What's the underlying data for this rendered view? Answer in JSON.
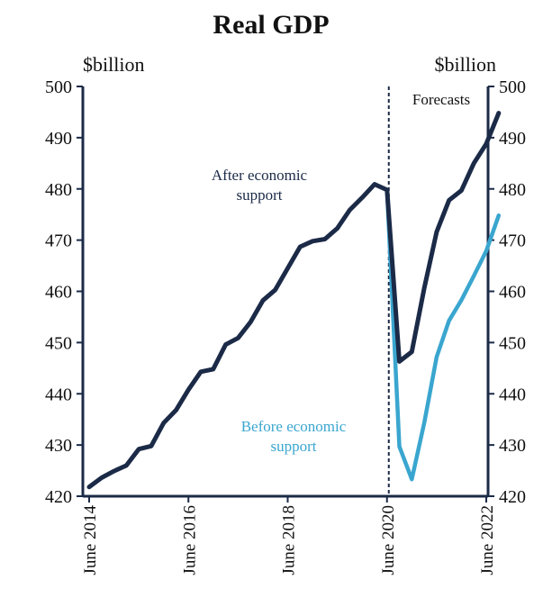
{
  "chart_data": {
    "type": "line",
    "title": "Real GDP",
    "ylabel_left": "$billion",
    "ylabel_right": "$billion",
    "ylim": [
      420,
      500
    ],
    "yticks": [
      420,
      430,
      440,
      450,
      460,
      470,
      480,
      490,
      500
    ],
    "x_start": "2014-06",
    "x_end": "2022-06",
    "xtick_labels": [
      "June 2014",
      "June 2016",
      "June 2018",
      "June 2020",
      "June 2022"
    ],
    "xtick_dates": [
      "2014-06",
      "2016-06",
      "2018-06",
      "2020-06",
      "2022-06"
    ],
    "forecast_divider": {
      "date": "2020-06",
      "label": "Forecasts"
    },
    "colors": {
      "after_support": "#1b2a47",
      "before_support": "#3aa6cf",
      "axis": "#1b2a47",
      "text": "#111111"
    },
    "series": [
      {
        "name": "After economic support",
        "color": "#1b2a47",
        "points": [
          [
            "2014-06",
            421.8
          ],
          [
            "2014-09",
            423.6
          ],
          [
            "2014-12",
            424.9
          ],
          [
            "2015-03",
            426.0
          ],
          [
            "2015-06",
            429.2
          ],
          [
            "2015-09",
            429.8
          ],
          [
            "2015-12",
            434.3
          ],
          [
            "2016-03",
            436.8
          ],
          [
            "2016-06",
            440.8
          ],
          [
            "2016-09",
            444.3
          ],
          [
            "2016-12",
            444.8
          ],
          [
            "2017-03",
            449.6
          ],
          [
            "2017-06",
            450.9
          ],
          [
            "2017-09",
            454.0
          ],
          [
            "2017-12",
            458.2
          ],
          [
            "2018-03",
            460.3
          ],
          [
            "2018-06",
            464.5
          ],
          [
            "2018-09",
            468.7
          ],
          [
            "2018-12",
            469.8
          ],
          [
            "2019-03",
            470.2
          ],
          [
            "2019-06",
            472.3
          ],
          [
            "2019-09",
            475.9
          ],
          [
            "2019-12",
            478.3
          ],
          [
            "2020-03",
            480.9
          ],
          [
            "2020-06",
            479.8
          ],
          [
            "2020-09",
            446.3
          ],
          [
            "2020-12",
            448.2
          ],
          [
            "2021-03",
            460.6
          ],
          [
            "2021-06",
            471.6
          ],
          [
            "2021-09",
            477.8
          ],
          [
            "2021-12",
            479.7
          ],
          [
            "2022-03",
            485.0
          ],
          [
            "2022-06",
            488.8
          ],
          [
            "2022-09",
            494.8
          ]
        ]
      },
      {
        "name": "Before economic support",
        "color": "#3aa6cf",
        "points": [
          [
            "2020-06",
            479.8
          ],
          [
            "2020-09",
            429.7
          ],
          [
            "2020-12",
            423.3
          ],
          [
            "2021-03",
            434.3
          ],
          [
            "2021-06",
            447.2
          ],
          [
            "2021-09",
            454.3
          ],
          [
            "2021-12",
            458.3
          ],
          [
            "2022-03",
            463.0
          ],
          [
            "2022-06",
            467.9
          ],
          [
            "2022-09",
            474.8
          ]
        ]
      }
    ],
    "annotations": [
      {
        "lines": [
          "After economic",
          "support"
        ],
        "series": "After economic support"
      },
      {
        "lines": [
          "Before economic",
          "support"
        ],
        "series": "Before economic support"
      }
    ]
  }
}
